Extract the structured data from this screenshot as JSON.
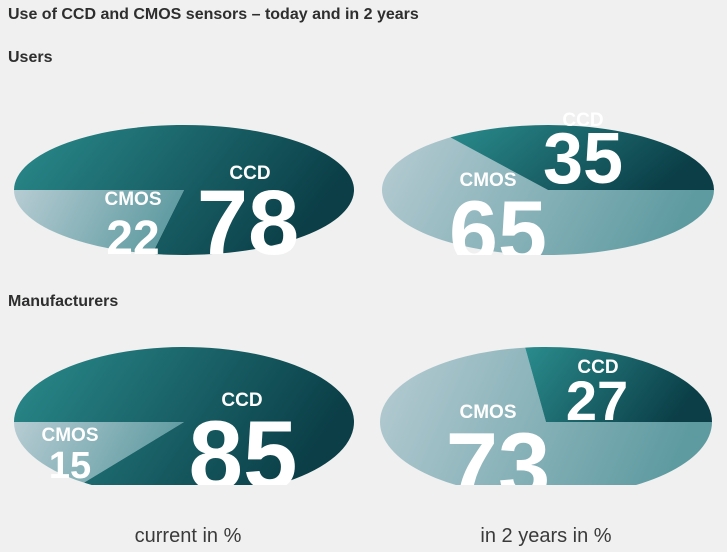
{
  "header": {
    "title": "Use of CCD and CMOS sensors – today and in 2 years",
    "users_label": "Users",
    "manufacturers_label": "Manufacturers"
  },
  "captions": {
    "current": "current in %",
    "future": "in 2 years in %"
  },
  "colors": {
    "background": "#eff0ef",
    "ccd_light": "#2a8c8d",
    "ccd_dark": "#0b3e47",
    "cmos_light": "#b7ccd3",
    "cmos_dark": "#5e9ba1",
    "text": "#2e2e2e",
    "number_text": "#ffffff"
  },
  "chart_data": [
    {
      "type": "pie",
      "group": "Users",
      "period": "current in %",
      "series": [
        {
          "name": "CCD",
          "value": 78
        },
        {
          "name": "CMOS",
          "value": 22
        }
      ]
    },
    {
      "type": "pie",
      "group": "Users",
      "period": "in 2 years in %",
      "series": [
        {
          "name": "CCD",
          "value": 35
        },
        {
          "name": "CMOS",
          "value": 65
        }
      ]
    },
    {
      "type": "pie",
      "group": "Manufacturers",
      "period": "current in %",
      "series": [
        {
          "name": "CCD",
          "value": 85
        },
        {
          "name": "CMOS",
          "value": 15
        }
      ]
    },
    {
      "type": "pie",
      "group": "Manufacturers",
      "period": "in 2 years in %",
      "series": [
        {
          "name": "CCD",
          "value": 27
        },
        {
          "name": "CMOS",
          "value": 73
        }
      ]
    }
  ]
}
